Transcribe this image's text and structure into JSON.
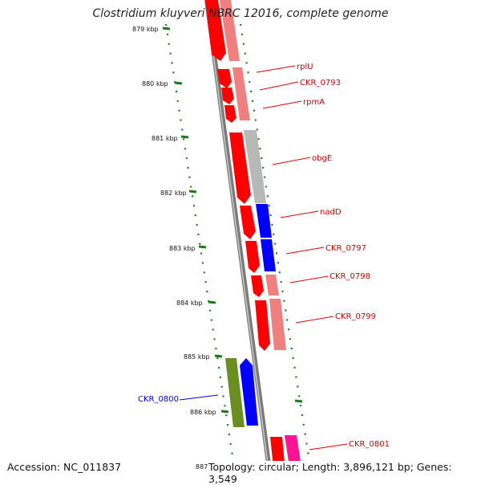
{
  "title": "Clostridium kluyveri NBRC 12016, complete genome",
  "accession": "Accession: NC_011837",
  "summary": "Topology: circular; Length: 3,896,121 bp; Genes: 3,549",
  "ticks": [
    "879 kbp",
    "880 kbp",
    "881 kbp",
    "882 kbp",
    "883 kbp",
    "884 kbp",
    "885 kbp",
    "886 kbp",
    "887 kbp"
  ],
  "genes": [
    {
      "label": "rplU",
      "strand": "forward",
      "protein_color": "#ff0000",
      "product_color": "#f08080"
    },
    {
      "label": "CKR_0793",
      "strand": "forward",
      "protein_color": "#ff0000",
      "product_color": "#f08080"
    },
    {
      "label": "rpmA",
      "strand": "forward",
      "protein_color": "#ff0000",
      "product_color": "#f08080"
    },
    {
      "label": "obgE",
      "strand": "forward",
      "protein_color": "#ff0000",
      "product_color": "#b8b8b8"
    },
    {
      "label": "nadD",
      "strand": "forward",
      "protein_color": "#ff0000",
      "product_color": "#0000ff"
    },
    {
      "label": "CKR_0797",
      "strand": "forward",
      "protein_color": "#ff0000",
      "product_color": "#0000ff"
    },
    {
      "label": "CKR_0798",
      "strand": "forward",
      "protein_color": "#ff0000",
      "product_color": "#f08080"
    },
    {
      "label": "CKR_0799",
      "strand": "forward",
      "protein_color": "#ff0000",
      "product_color": "#f08080"
    },
    {
      "label": "CKR_0800",
      "strand": "reverse",
      "protein_color": "#0000ff",
      "product_color": "#6b8e23"
    },
    {
      "label": "CKR_0801",
      "strand": "forward",
      "protein_color": "#ff0000",
      "product_color": "#ff1493"
    }
  ],
  "colors": {
    "forward_label": "#cc0000",
    "reverse_label": "#0000cc",
    "tick": "#1a7a1a",
    "backbone": "#888888"
  }
}
